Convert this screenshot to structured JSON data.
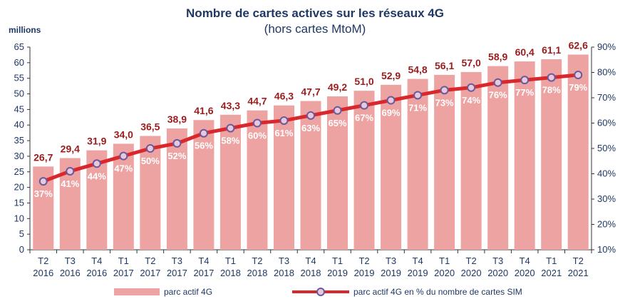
{
  "chart_data": {
    "type": "bar+line",
    "title": "Nombre de cartes actives sur les réseaux  4G",
    "subtitle": "(hors cartes MtoM)",
    "ylabel": "millions",
    "ylim": [
      0,
      65
    ],
    "y2lim": [
      10,
      90
    ],
    "yticks": [
      "0",
      "5",
      "10",
      "15",
      "20",
      "25",
      "30",
      "35",
      "40",
      "45",
      "50",
      "55",
      "60",
      "65"
    ],
    "y2ticks": [
      "10%",
      "20%",
      "30%",
      "40%",
      "50%",
      "60%",
      "70%",
      "80%",
      "90%"
    ],
    "categories": [
      [
        "T2",
        "2016"
      ],
      [
        "T3",
        "2016"
      ],
      [
        "T4",
        "2016"
      ],
      [
        "T1",
        "2017"
      ],
      [
        "T2",
        "2017"
      ],
      [
        "T3",
        "2017"
      ],
      [
        "T4",
        "2017"
      ],
      [
        "T1",
        "2018"
      ],
      [
        "T2",
        "2018"
      ],
      [
        "T3",
        "2018"
      ],
      [
        "T4",
        "2018"
      ],
      [
        "T1",
        "2019"
      ],
      [
        "T2",
        "2019"
      ],
      [
        "T3",
        "2019"
      ],
      [
        "T4",
        "2019"
      ],
      [
        "T1",
        "2020"
      ],
      [
        "T2",
        "2020"
      ],
      [
        "T3",
        "2020"
      ],
      [
        "T4",
        "2020"
      ],
      [
        "T1",
        "2021"
      ],
      [
        "T2",
        "2021"
      ]
    ],
    "series": [
      {
        "name": "parc actif 4G",
        "type": "bar",
        "axis": "left",
        "color": "#eea3a3",
        "values": [
          26.7,
          29.4,
          31.9,
          34.0,
          36.5,
          38.9,
          41.6,
          43.3,
          44.7,
          46.3,
          47.7,
          49.2,
          51.0,
          52.9,
          54.8,
          56.1,
          57.0,
          58.9,
          60.4,
          61.1,
          62.6
        ],
        "labels": [
          "26,7",
          "29,4",
          "31,9",
          "34,0",
          "36,5",
          "38,9",
          "41,6",
          "43,3",
          "44,7",
          "46,3",
          "47,7",
          "49,2",
          "51,0",
          "52,9",
          "54,8",
          "56,1",
          "57,0",
          "58,9",
          "60,4",
          "61,1",
          "62,6"
        ]
      },
      {
        "name": "parc actif 4G en % du nombre de cartes SIM",
        "type": "line",
        "axis": "right",
        "color": "#d8282d",
        "values": [
          37,
          41,
          44,
          47,
          50,
          52,
          56,
          58,
          60,
          61,
          63,
          65,
          67,
          69,
          71,
          73,
          74,
          76,
          77,
          78,
          79
        ],
        "labels": [
          "37%",
          "41%",
          "44%",
          "47%",
          "50%",
          "52%",
          "56%",
          "58%",
          "60%",
          "61%",
          "63%",
          "65%",
          "67%",
          "69%",
          "71%",
          "73%",
          "74%",
          "76%",
          "77%",
          "78%",
          "79%"
        ]
      }
    ],
    "legend": "bottom",
    "grid": false
  }
}
